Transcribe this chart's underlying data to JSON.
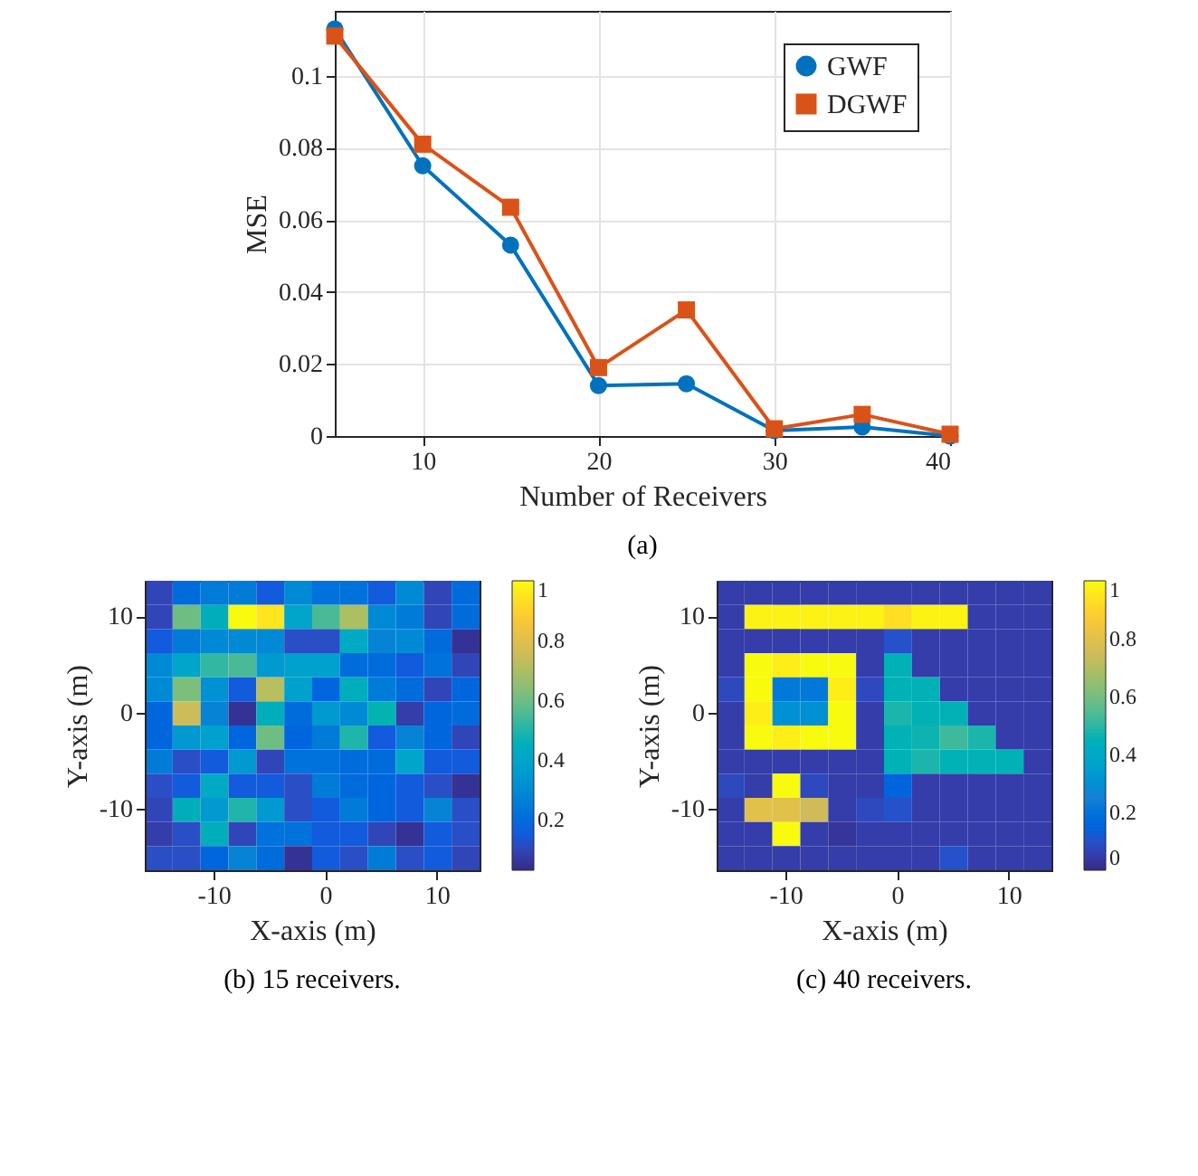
{
  "chart_data": [
    {
      "type": "line",
      "xlabel": "Number of Receivers",
      "ylabel": "MSE",
      "annotations": [
        "(a)"
      ],
      "x": [
        5,
        10,
        15,
        20,
        25,
        30,
        35,
        40
      ],
      "series": [
        {
          "name": "GWF",
          "color": "#0072bd",
          "marker": "circle",
          "values": [
            0.113,
            0.075,
            0.053,
            0.014,
            0.0145,
            0.0015,
            0.0025,
            0.0
          ]
        },
        {
          "name": "DGWF",
          "color": "#d95319",
          "marker": "square",
          "values": [
            0.111,
            0.081,
            0.0635,
            0.019,
            0.035,
            0.002,
            0.006,
            0.0005
          ]
        }
      ],
      "xlim": [
        5,
        40
      ],
      "xticks": [
        10,
        20,
        30,
        40
      ],
      "ylim": [
        0,
        0.118
      ],
      "yticks": [
        0,
        0.02,
        0.04,
        0.06,
        0.08,
        0.1
      ],
      "grid": true,
      "legend": "top right"
    },
    {
      "type": "heatmap",
      "xlabel": "X-axis (m)",
      "ylabel": "Y-axis (m)",
      "annotations": [
        "(b) 15 receivers."
      ],
      "categories": [
        null,
        null,
        "-10",
        null,
        null,
        null,
        "0",
        null,
        null,
        null,
        "10",
        null
      ],
      "y_categories": [
        null,
        "10",
        null,
        null,
        null,
        "0",
        null,
        null,
        null,
        "-10",
        null,
        null
      ],
      "clim": [
        0.03,
        1
      ],
      "cticks": [
        0.2,
        0.4,
        0.6,
        0.8,
        1
      ],
      "cells": [
        [
          0.1,
          0.2,
          0.25,
          0.25,
          0.15,
          0.3,
          0.22,
          0.22,
          0.15,
          0.3,
          0.1,
          0.2
        ],
        [
          0.1,
          0.6,
          0.45,
          1.0,
          0.95,
          0.4,
          0.55,
          0.7,
          0.3,
          0.25,
          0.1,
          0.2
        ],
        [
          0.15,
          0.25,
          0.3,
          0.3,
          0.3,
          0.12,
          0.12,
          0.42,
          0.28,
          0.3,
          0.2,
          0.05
        ],
        [
          0.3,
          0.4,
          0.52,
          0.55,
          0.35,
          0.38,
          0.38,
          0.2,
          0.2,
          0.15,
          0.22,
          0.1
        ],
        [
          0.3,
          0.62,
          0.32,
          0.15,
          0.72,
          0.38,
          0.18,
          0.45,
          0.25,
          0.2,
          0.1,
          0.18
        ],
        [
          0.18,
          0.75,
          0.28,
          0.05,
          0.45,
          0.2,
          0.35,
          0.3,
          0.48,
          0.08,
          0.18,
          0.2
        ],
        [
          0.18,
          0.35,
          0.38,
          0.18,
          0.6,
          0.18,
          0.25,
          0.5,
          0.15,
          0.28,
          0.18,
          0.1
        ],
        [
          0.25,
          0.12,
          0.15,
          0.35,
          0.1,
          0.22,
          0.22,
          0.2,
          0.2,
          0.4,
          0.15,
          0.15
        ],
        [
          0.12,
          0.15,
          0.42,
          0.15,
          0.15,
          0.12,
          0.25,
          0.2,
          0.18,
          0.15,
          0.12,
          0.05
        ],
        [
          0.1,
          0.45,
          0.35,
          0.5,
          0.35,
          0.12,
          0.15,
          0.25,
          0.18,
          0.15,
          0.28,
          0.12
        ],
        [
          0.08,
          0.12,
          0.45,
          0.1,
          0.22,
          0.22,
          0.15,
          0.15,
          0.1,
          0.05,
          0.15,
          0.12
        ],
        [
          0.12,
          0.12,
          0.18,
          0.28,
          0.2,
          0.05,
          0.15,
          0.12,
          0.25,
          0.12,
          0.15,
          0.1
        ]
      ]
    },
    {
      "type": "heatmap",
      "xlabel": "X-axis (m)",
      "ylabel": "Y-axis (m)",
      "annotations": [
        "(c) 40 receivers."
      ],
      "categories": [
        null,
        null,
        "-10",
        null,
        null,
        null,
        "0",
        null,
        null,
        null,
        "10",
        null
      ],
      "y_categories": [
        null,
        "10",
        null,
        null,
        null,
        "0",
        null,
        null,
        null,
        "-10",
        null,
        null
      ],
      "clim": [
        0,
        1
      ],
      "cticks": [
        0,
        0.2,
        0.4,
        0.6,
        0.8,
        1
      ],
      "cells": [
        [
          0.05,
          0.05,
          0.05,
          0.05,
          0.05,
          0.05,
          0.05,
          0.05,
          0.05,
          0.05,
          0.05,
          0.05
        ],
        [
          0.05,
          0.98,
          0.98,
          0.98,
          0.98,
          0.98,
          0.93,
          0.98,
          0.98,
          0.05,
          0.05,
          0.05
        ],
        [
          0.05,
          0.05,
          0.05,
          0.05,
          0.05,
          0.05,
          0.1,
          0.05,
          0.05,
          0.05,
          0.05,
          0.05
        ],
        [
          0.05,
          1,
          0.97,
          1,
          1,
          0.05,
          0.45,
          0.05,
          0.05,
          0.05,
          0.05,
          0.05
        ],
        [
          0.08,
          1,
          0.22,
          0.22,
          0.97,
          0.08,
          0.45,
          0.45,
          0.05,
          0.05,
          0.05,
          0.05
        ],
        [
          0.05,
          0.97,
          0.3,
          0.3,
          1,
          0.05,
          0.48,
          0.45,
          0.45,
          0.05,
          0.05,
          0.05
        ],
        [
          0.05,
          1,
          0.97,
          1,
          1,
          0.05,
          0.45,
          0.47,
          0.52,
          0.48,
          0.05,
          0.05
        ],
        [
          0.05,
          0.05,
          0.05,
          0.05,
          0.05,
          0.05,
          0.45,
          0.48,
          0.45,
          0.45,
          0.45,
          0.05
        ],
        [
          0.08,
          0.05,
          1,
          0.08,
          0.05,
          0.05,
          0.15,
          0.05,
          0.05,
          0.05,
          0.05,
          0.05
        ],
        [
          0.05,
          0.8,
          0.8,
          0.75,
          0.05,
          0.08,
          0.1,
          0.05,
          0.05,
          0.05,
          0.05,
          0.05
        ],
        [
          0.05,
          0.05,
          1,
          0.05,
          0.03,
          0.05,
          0.05,
          0.05,
          0.05,
          0.05,
          0.05,
          0.05
        ],
        [
          0.05,
          0.05,
          0.05,
          0.05,
          0.05,
          0.05,
          0.05,
          0.05,
          0.1,
          0.05,
          0.05,
          0.05
        ]
      ]
    }
  ]
}
